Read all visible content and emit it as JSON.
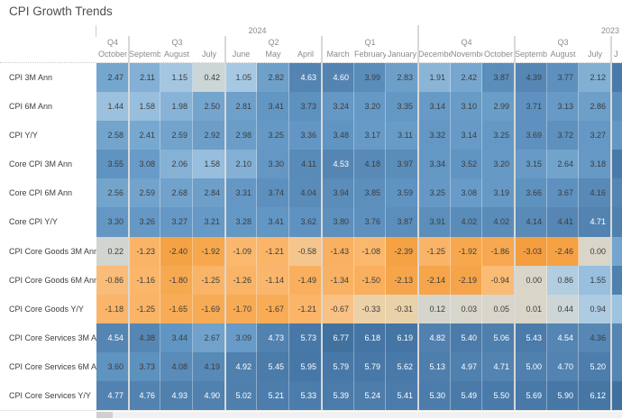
{
  "title": "CPI Growth Trends",
  "colors": {
    "background": "#ffffff",
    "title_text": "#4e4e4e",
    "header_text": "#8b8b8b",
    "row_label_text": "#3c3c3c",
    "cell_text_dark": "#3c3c3c",
    "cell_text_light": "#ffffff",
    "group_separator": "#d8d8d8",
    "scrollbar_track": "#f1f1f1",
    "scrollbar_thumb": "#d0d0d0"
  },
  "chart_data": {
    "type": "heatmap",
    "title": "CPI Growth Trends",
    "legend_position": "none",
    "grid": "off",
    "years": [
      {
        "label": "2024",
        "span": 10
      },
      {
        "label": "2023",
        "span": 7
      }
    ],
    "quarters": [
      {
        "label": "Q4",
        "span": 1
      },
      {
        "label": "Q3",
        "span": 3
      },
      {
        "label": "Q2",
        "span": 3
      },
      {
        "label": "Q1",
        "span": 3
      },
      {
        "label": "Q4",
        "span": 3
      },
      {
        "label": "Q3",
        "span": 3
      },
      {
        "label": "",
        "span": 1
      }
    ],
    "months": [
      "October",
      "Septemb..",
      "August",
      "July",
      "June",
      "May",
      "April",
      "March",
      "February",
      "January",
      "December",
      "November",
      "October",
      "Septemb..",
      "August",
      "July",
      "J"
    ],
    "rows": [
      {
        "label": "CPI 3M Ann",
        "values": [
          "2.47",
          "2.11",
          "1.15",
          "0.42",
          "1.05",
          "2.82",
          "4.63",
          "4.60",
          "3.99",
          "2.83",
          "1.91",
          "2.42",
          "3.87",
          "4.39",
          "3.77",
          "2.12"
        ]
      },
      {
        "label": "CPI 6M Ann",
        "values": [
          "1.44",
          "1.58",
          "1.98",
          "2.50",
          "2.81",
          "3.41",
          "3.73",
          "3.24",
          "3.20",
          "3.35",
          "3.14",
          "3.10",
          "2.99",
          "3.71",
          "3.13",
          "2.86"
        ]
      },
      {
        "label": "CPI Y/Y",
        "values": [
          "2.58",
          "2.41",
          "2.59",
          "2.92",
          "2.98",
          "3.25",
          "3.36",
          "3.48",
          "3.17",
          "3.11",
          "3.32",
          "3.14",
          "3.25",
          "3.69",
          "3.72",
          "3.27"
        ]
      },
      {
        "label": "Core CPI 3M Ann",
        "values": [
          "3.55",
          "3.08",
          "2.06",
          "1.58",
          "2.10",
          "3.30",
          "4.11",
          "4.53",
          "4.18",
          "3.97",
          "3.34",
          "3.52",
          "3.20",
          "3.15",
          "2.64",
          "3.18"
        ]
      },
      {
        "label": "Core CPI 6M Ann",
        "values": [
          "2.56",
          "2.59",
          "2.68",
          "2.84",
          "3.31",
          "3.74",
          "4.04",
          "3.94",
          "3.85",
          "3.59",
          "3.25",
          "3.08",
          "3.19",
          "3.66",
          "3.67",
          "4.16"
        ]
      },
      {
        "label": "Core CPI Y/Y",
        "values": [
          "3.30",
          "3.26",
          "3.27",
          "3.21",
          "3.28",
          "3.41",
          "3.62",
          "3.80",
          "3.76",
          "3.87",
          "3.91",
          "4.02",
          "4.02",
          "4.14",
          "4.41",
          "4.71"
        ]
      },
      {
        "label": "CPI Core Goods 3M Ann",
        "values": [
          "0.22",
          "-1.23",
          "-2.40",
          "-1.92",
          "-1.09",
          "-1.21",
          "-0.58",
          "-1.43",
          "-1.08",
          "-2.39",
          "-1.25",
          "-1.92",
          "-1.86",
          "-3.03",
          "-2.46",
          "0.00"
        ]
      },
      {
        "label": "CPI Core Goods 6M Ann",
        "values": [
          "-0.86",
          "-1.16",
          "-1.80",
          "-1.25",
          "-1.26",
          "-1.14",
          "-1.49",
          "-1.34",
          "-1.50",
          "-2.13",
          "-2.14",
          "-2.19",
          "-0.94",
          "0.00",
          "0.86",
          "1.55"
        ]
      },
      {
        "label": "CPI Core Goods Y/Y",
        "values": [
          "-1.18",
          "-1.25",
          "-1.65",
          "-1.69",
          "-1.70",
          "-1.67",
          "-1.21",
          "-0.67",
          "-0.33",
          "-0.31",
          "0.12",
          "0.03",
          "0.05",
          "0.01",
          "0.44",
          "0.94"
        ]
      },
      {
        "label": "CPI Core Services 3M Ann",
        "values": [
          "4.54",
          "4.38",
          "3.44",
          "2.67",
          "3.09",
          "4.73",
          "5.73",
          "6.77",
          "6.18",
          "6.19",
          "4.82",
          "5.40",
          "5.06",
          "5.43",
          "4.54",
          "4.36"
        ]
      },
      {
        "label": "CPI Core Services 6M Ann",
        "values": [
          "3.60",
          "3.73",
          "4.08",
          "4.19",
          "4.92",
          "5.45",
          "5.95",
          "5.79",
          "5.79",
          "5.62",
          "5.13",
          "4.97",
          "4.71",
          "5.00",
          "4.70",
          "5.20"
        ]
      },
      {
        "label": "CPI Core Services Y/Y",
        "values": [
          "4.77",
          "4.76",
          "4.93",
          "4.90",
          "5.02",
          "5.21",
          "5.33",
          "5.39",
          "5.24",
          "5.41",
          "5.30",
          "5.49",
          "5.50",
          "5.69",
          "5.90",
          "6.12"
        ]
      }
    ],
    "partial_column_colors": [
      "#4a7aa9",
      "#5d90bc",
      "#6398c4",
      "#4a7aa9",
      "#5585b2",
      "#4f80ae",
      "#74a5cd",
      "#4f81af",
      "#9cc3e0",
      "#5585b2",
      "#5585b2",
      "#41719f"
    ],
    "color_scale": {
      "center": 0,
      "white_text_threshold": 4.5,
      "stops_positive": [
        [
          0,
          "#d9d5c9"
        ],
        [
          0.5,
          "#cad6d9"
        ],
        [
          1.0,
          "#a9c9e2"
        ],
        [
          1.6,
          "#96bedc"
        ],
        [
          2.5,
          "#74a5cd"
        ],
        [
          3.5,
          "#6094c2"
        ],
        [
          4.5,
          "#5585b2"
        ],
        [
          5.5,
          "#4a7aa9"
        ],
        [
          6.8,
          "#41719f"
        ]
      ],
      "stops_negative": [
        [
          0,
          "#d9d5c9"
        ],
        [
          -0.3,
          "#e9d2ab"
        ],
        [
          -0.7,
          "#fac081"
        ],
        [
          -1.2,
          "#fab569"
        ],
        [
          -1.8,
          "#f7a951"
        ],
        [
          -2.4,
          "#f5a244"
        ],
        [
          -3.1,
          "#f49e3f"
        ]
      ]
    }
  }
}
